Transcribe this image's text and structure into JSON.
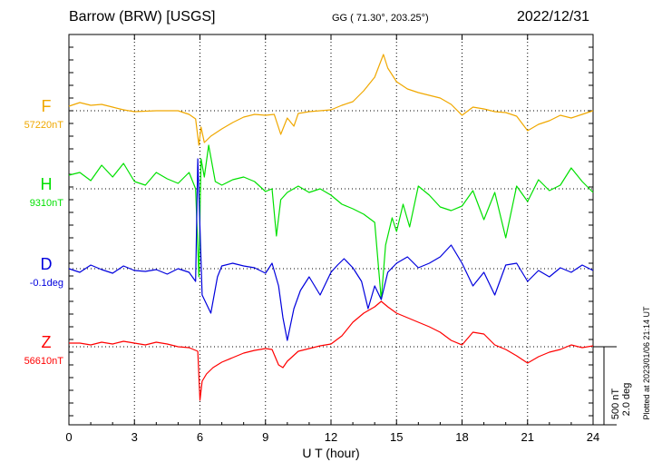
{
  "header": {
    "station": "Barrow (BRW)  [USGS]",
    "coords": "GG ( 71.30°, 203.25°)",
    "date": "2022/12/31"
  },
  "plotted_note": "Plotted at 2023/01/06 21:14 UT",
  "scale_label": {
    "line1": "500 nT",
    "line2": "2.0 deg"
  },
  "colors": {
    "F": "#f0a800",
    "H": "#00e000",
    "D": "#0000dd",
    "Z": "#ff0000",
    "grid": "#000000"
  },
  "chart_data": {
    "type": "line",
    "xlabel": "U T (hour)",
    "xlim": [
      0,
      24
    ],
    "xticks": [
      0,
      3,
      6,
      9,
      12,
      15,
      18,
      21,
      24
    ],
    "grid": true,
    "series": [
      {
        "name": "F",
        "baseline_label": "57220nT",
        "color": "#f0a800",
        "points": [
          [
            0,
            117
          ],
          [
            0.5,
            113
          ],
          [
            1,
            116
          ],
          [
            1.5,
            115
          ],
          [
            2,
            118
          ],
          [
            2.5,
            121
          ],
          [
            3,
            123
          ],
          [
            4,
            122
          ],
          [
            5,
            122
          ],
          [
            5.5,
            126
          ],
          [
            5.8,
            131
          ],
          [
            5.95,
            160
          ],
          [
            6.05,
            140
          ],
          [
            6.2,
            157
          ],
          [
            6.5,
            150
          ],
          [
            7,
            142
          ],
          [
            7.5,
            135
          ],
          [
            8,
            129
          ],
          [
            8.5,
            126
          ],
          [
            9,
            127
          ],
          [
            9.4,
            126
          ],
          [
            9.7,
            148
          ],
          [
            10,
            130
          ],
          [
            10.3,
            139
          ],
          [
            10.5,
            125
          ],
          [
            11,
            123
          ],
          [
            12,
            121
          ],
          [
            12.5,
            116
          ],
          [
            13,
            112
          ],
          [
            13.5,
            100
          ],
          [
            14,
            85
          ],
          [
            14.4,
            60
          ],
          [
            14.6,
            75
          ],
          [
            15,
            90
          ],
          [
            15.5,
            98
          ],
          [
            16,
            102
          ],
          [
            17,
            108
          ],
          [
            17.5,
            115
          ],
          [
            18,
            127
          ],
          [
            18.5,
            118
          ],
          [
            19,
            120
          ],
          [
            19.5,
            123
          ],
          [
            20,
            124
          ],
          [
            20.5,
            128
          ],
          [
            21,
            144
          ],
          [
            21.5,
            137
          ],
          [
            22,
            133
          ],
          [
            22.5,
            127
          ],
          [
            23,
            130
          ],
          [
            23.5,
            126
          ],
          [
            24,
            122
          ]
        ]
      },
      {
        "name": "H",
        "baseline_label": "9310nT",
        "color": "#00e000",
        "points": [
          [
            0,
            193
          ],
          [
            0.5,
            190
          ],
          [
            1,
            199
          ],
          [
            1.5,
            182
          ],
          [
            2,
            195
          ],
          [
            2.5,
            180
          ],
          [
            3,
            200
          ],
          [
            3.5,
            204
          ],
          [
            4,
            190
          ],
          [
            4.5,
            197
          ],
          [
            5,
            202
          ],
          [
            5.5,
            190
          ],
          [
            5.8,
            208
          ],
          [
            5.95,
            305
          ],
          [
            6.05,
            175
          ],
          [
            6.2,
            195
          ],
          [
            6.4,
            160
          ],
          [
            6.7,
            200
          ],
          [
            7,
            204
          ],
          [
            7.5,
            198
          ],
          [
            8,
            195
          ],
          [
            8.5,
            200
          ],
          [
            9,
            211
          ],
          [
            9.3,
            208
          ],
          [
            9.5,
            260
          ],
          [
            9.7,
            220
          ],
          [
            10,
            212
          ],
          [
            10.5,
            205
          ],
          [
            11,
            212
          ],
          [
            11.5,
            208
          ],
          [
            12,
            215
          ],
          [
            12.5,
            225
          ],
          [
            13,
            230
          ],
          [
            13.5,
            236
          ],
          [
            14,
            245
          ],
          [
            14.3,
            330
          ],
          [
            14.5,
            270
          ],
          [
            14.8,
            240
          ],
          [
            15,
            255
          ],
          [
            15.3,
            225
          ],
          [
            15.6,
            250
          ],
          [
            16,
            205
          ],
          [
            16.5,
            215
          ],
          [
            17,
            228
          ],
          [
            17.5,
            232
          ],
          [
            18,
            227
          ],
          [
            18.5,
            210
          ],
          [
            19,
            242
          ],
          [
            19.5,
            212
          ],
          [
            20,
            262
          ],
          [
            20.5,
            205
          ],
          [
            21,
            222
          ],
          [
            21.5,
            198
          ],
          [
            22,
            210
          ],
          [
            22.5,
            204
          ],
          [
            23,
            185
          ],
          [
            23.5,
            200
          ],
          [
            24,
            212
          ]
        ]
      },
      {
        "name": "D",
        "baseline_label": "-0.1deg",
        "color": "#0000dd",
        "points": [
          [
            0,
            296
          ],
          [
            0.5,
            300
          ],
          [
            1,
            292
          ],
          [
            1.5,
            297
          ],
          [
            2,
            301
          ],
          [
            2.5,
            293
          ],
          [
            3,
            298
          ],
          [
            3.5,
            299
          ],
          [
            4,
            297
          ],
          [
            4.5,
            302
          ],
          [
            5,
            296
          ],
          [
            5.5,
            300
          ],
          [
            5.8,
            310
          ],
          [
            5.9,
            175
          ],
          [
            6.1,
            325
          ],
          [
            6.5,
            345
          ],
          [
            6.8,
            305
          ],
          [
            7,
            293
          ],
          [
            7.5,
            290
          ],
          [
            8,
            293
          ],
          [
            8.5,
            295
          ],
          [
            9,
            301
          ],
          [
            9.3,
            290
          ],
          [
            9.6,
            315
          ],
          [
            9.8,
            350
          ],
          [
            10,
            375
          ],
          [
            10.3,
            340
          ],
          [
            10.6,
            320
          ],
          [
            11,
            305
          ],
          [
            11.5,
            325
          ],
          [
            12,
            300
          ],
          [
            12.3,
            292
          ],
          [
            12.6,
            285
          ],
          [
            13,
            295
          ],
          [
            13.4,
            310
          ],
          [
            13.7,
            340
          ],
          [
            14,
            315
          ],
          [
            14.3,
            330
          ],
          [
            14.6,
            300
          ],
          [
            15,
            290
          ],
          [
            15.5,
            283
          ],
          [
            16,
            295
          ],
          [
            16.5,
            290
          ],
          [
            17,
            283
          ],
          [
            17.5,
            270
          ],
          [
            18,
            290
          ],
          [
            18.5,
            315
          ],
          [
            19,
            300
          ],
          [
            19.5,
            325
          ],
          [
            20,
            292
          ],
          [
            20.5,
            290
          ],
          [
            21,
            310
          ],
          [
            21.5,
            298
          ],
          [
            22,
            305
          ],
          [
            22.5,
            295
          ],
          [
            23,
            300
          ],
          [
            23.5,
            292
          ],
          [
            24,
            298
          ]
        ]
      },
      {
        "name": "Z",
        "baseline_label": "56610nT",
        "color": "#ff0000",
        "points": [
          [
            0,
            378
          ],
          [
            0.5,
            378
          ],
          [
            1,
            380
          ],
          [
            1.5,
            377
          ],
          [
            2,
            379
          ],
          [
            2.5,
            376
          ],
          [
            3,
            378
          ],
          [
            3.5,
            380
          ],
          [
            4,
            377
          ],
          [
            4.5,
            379
          ],
          [
            5,
            382
          ],
          [
            5.5,
            383
          ],
          [
            5.9,
            387
          ],
          [
            6,
            441
          ],
          [
            6.1,
            420
          ],
          [
            6.3,
            412
          ],
          [
            6.6,
            405
          ],
          [
            7,
            399
          ],
          [
            7.5,
            394
          ],
          [
            8,
            389
          ],
          [
            8.5,
            386
          ],
          [
            9,
            384
          ],
          [
            9.3,
            385
          ],
          [
            9.6,
            402
          ],
          [
            9.8,
            405
          ],
          [
            10,
            398
          ],
          [
            10.5,
            387
          ],
          [
            11,
            384
          ],
          [
            11.5,
            381
          ],
          [
            12,
            379
          ],
          [
            12.5,
            370
          ],
          [
            13,
            355
          ],
          [
            13.5,
            345
          ],
          [
            14,
            338
          ],
          [
            14.3,
            332
          ],
          [
            14.6,
            338
          ],
          [
            15,
            345
          ],
          [
            15.5,
            350
          ],
          [
            16,
            355
          ],
          [
            16.5,
            360
          ],
          [
            17,
            366
          ],
          [
            17.5,
            375
          ],
          [
            18,
            380
          ],
          [
            18.5,
            366
          ],
          [
            19,
            368
          ],
          [
            19.5,
            380
          ],
          [
            20,
            385
          ],
          [
            20.5,
            392
          ],
          [
            21,
            400
          ],
          [
            21.5,
            393
          ],
          [
            22,
            388
          ],
          [
            22.5,
            385
          ],
          [
            23,
            380
          ],
          [
            23.5,
            383
          ],
          [
            24,
            381
          ]
        ]
      }
    ]
  }
}
